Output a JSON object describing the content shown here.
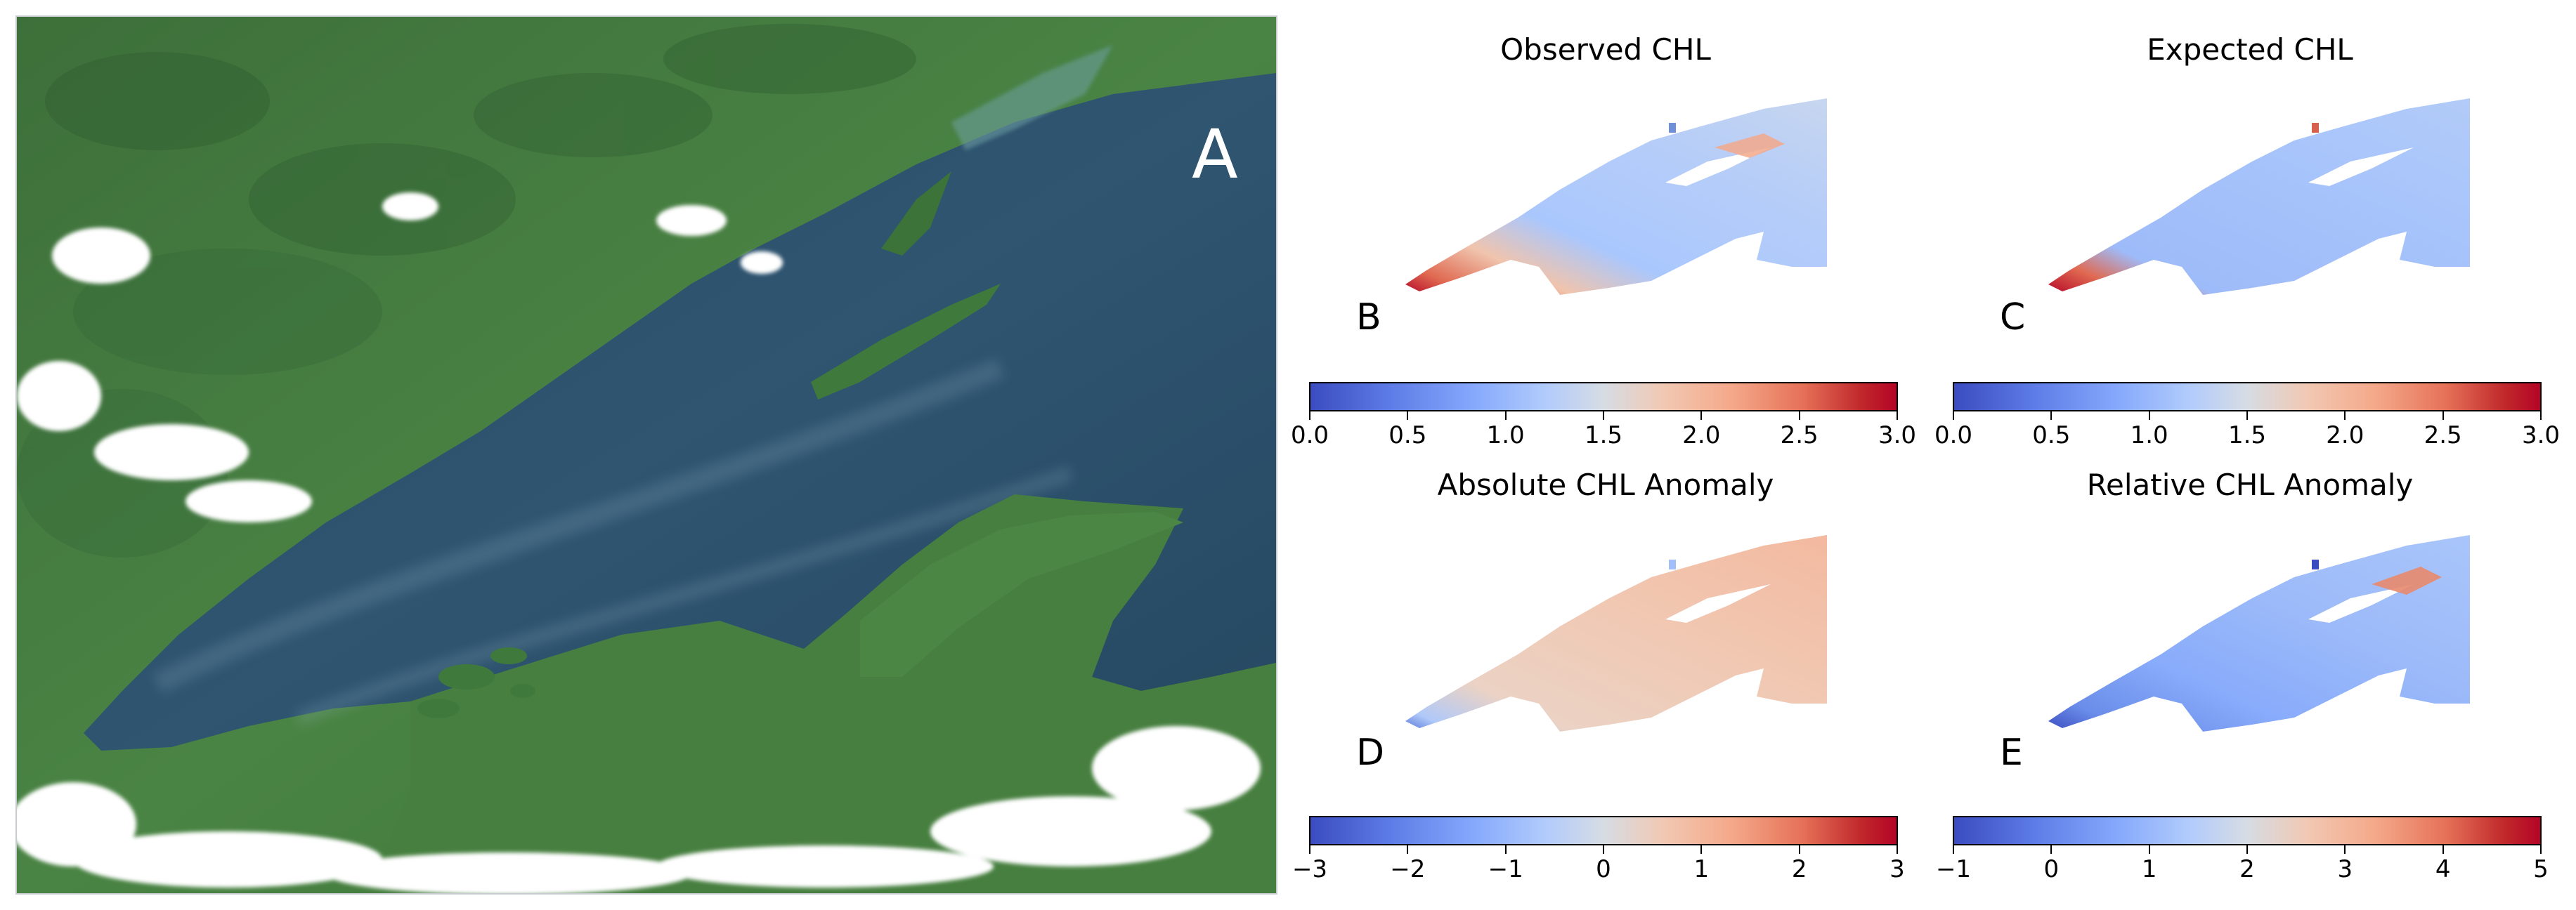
{
  "panels": {
    "a": {
      "letter": "A"
    },
    "b": {
      "title": "Observed CHL",
      "letter": "B"
    },
    "c": {
      "title": "Expected CHL",
      "letter": "C"
    },
    "d": {
      "title": "Absolute CHL Anomaly",
      "letter": "D"
    },
    "e": {
      "title": "Relative CHL Anomaly",
      "letter": "E"
    }
  },
  "colorbars": {
    "top_left": {
      "ticks": [
        "0.0",
        "0.5",
        "1.0",
        "1.5",
        "2.0",
        "2.5",
        "3.0"
      ],
      "range": [
        0.0,
        3.0
      ]
    },
    "top_right": {
      "ticks": [
        "0.0",
        "0.5",
        "1.0",
        "1.5",
        "2.0",
        "2.5",
        "3.0"
      ],
      "range": [
        0.0,
        3.0
      ]
    },
    "bottom_left": {
      "ticks": [
        "−3",
        "−2",
        "−1",
        "0",
        "1",
        "2",
        "3"
      ],
      "range": [
        -3,
        3
      ]
    },
    "bottom_right": {
      "ticks": [
        "−1",
        "0",
        "1",
        "2",
        "3",
        "4",
        "5"
      ],
      "range": [
        -1,
        5
      ]
    }
  },
  "colors": {
    "cool_end": "#3b4cc0",
    "neutral": "#dddddd",
    "warm_end": "#b40426",
    "lake_deep": "#243f55",
    "land_green": "#3f7a3c"
  },
  "colormap": "coolwarm"
}
